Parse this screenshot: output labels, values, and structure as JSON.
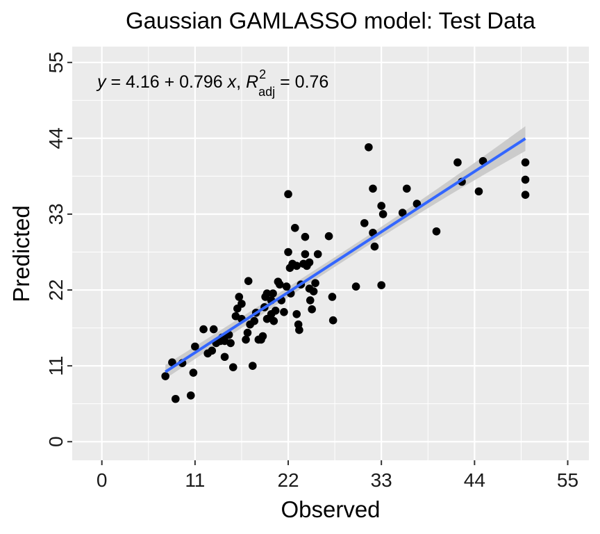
{
  "chart_data": {
    "type": "scatter",
    "title": "Gaussian GAMLASSO model: Test Data",
    "xlabel": "Observed",
    "ylabel": "Predicted",
    "xlim": [
      -3.5,
      57.5
    ],
    "ylim": [
      -2.7,
      57.3
    ],
    "xticks": [
      0,
      11,
      22,
      33,
      44,
      55
    ],
    "yticks": [
      0,
      11,
      22,
      33,
      44,
      55
    ],
    "tick_labels": {
      "x": [
        "0",
        "11",
        "22",
        "33",
        "44",
        "55"
      ],
      "y": [
        "0",
        "11",
        "22",
        "33",
        "44",
        "55"
      ]
    },
    "grid": true,
    "legend": "none",
    "colors": {
      "points": "#000000",
      "fit_line": "#3366ff",
      "ribbon": "#c8c8c8",
      "panel": "#ebebeb",
      "grid": "#ffffff"
    },
    "fit": {
      "intercept": 4.16,
      "slope": 0.796,
      "r2_adj": 0.76,
      "equation_parts": {
        "y": "y",
        "rhs": " = 4.16 + 0.796 ",
        "x": "x",
        "sep": ", ",
        "r": "R",
        "sup": "2",
        "sub": "adj",
        "val": " = 0.76"
      },
      "x_range": [
        7.5,
        50
      ],
      "ci_halfwidth_ends": [
        1.0,
        1.8
      ],
      "ci_halfwidth_center": 0.7
    },
    "points": [
      [
        7.5,
        9.5
      ],
      [
        8.3,
        11.5
      ],
      [
        8.7,
        6.2
      ],
      [
        9.5,
        11.4
      ],
      [
        10.5,
        6.7
      ],
      [
        10.8,
        10.0
      ],
      [
        11.0,
        13.8
      ],
      [
        12.0,
        16.3
      ],
      [
        12.5,
        12.8
      ],
      [
        13.0,
        13.2
      ],
      [
        13.2,
        16.3
      ],
      [
        13.5,
        14.3
      ],
      [
        14.0,
        14.6
      ],
      [
        14.2,
        15.1
      ],
      [
        14.5,
        12.3
      ],
      [
        14.5,
        14.6
      ],
      [
        15.0,
        15.5
      ],
      [
        15.2,
        14.3
      ],
      [
        15.5,
        10.8
      ],
      [
        15.8,
        18.2
      ],
      [
        16.0,
        19.3
      ],
      [
        16.2,
        21.0
      ],
      [
        16.5,
        20.0
      ],
      [
        16.5,
        17.8
      ],
      [
        17.0,
        14.8
      ],
      [
        17.2,
        15.8
      ],
      [
        17.3,
        23.3
      ],
      [
        17.5,
        17.0
      ],
      [
        17.8,
        11.0
      ],
      [
        18.0,
        17.5
      ],
      [
        18.2,
        18.7
      ],
      [
        18.5,
        14.8
      ],
      [
        18.8,
        14.8
      ],
      [
        19.0,
        15.3
      ],
      [
        19.2,
        19.5
      ],
      [
        19.3,
        21.0
      ],
      [
        19.5,
        21.5
      ],
      [
        19.5,
        17.8
      ],
      [
        20.0,
        20.5
      ],
      [
        20.0,
        18.5
      ],
      [
        20.2,
        21.5
      ],
      [
        20.3,
        17.5
      ],
      [
        20.5,
        19.0
      ],
      [
        20.8,
        23.2
      ],
      [
        21.0,
        22.8
      ],
      [
        21.2,
        20.5
      ],
      [
        21.5,
        18.8
      ],
      [
        21.8,
        22.5
      ],
      [
        22.0,
        35.9
      ],
      [
        22.0,
        27.5
      ],
      [
        22.2,
        25.2
      ],
      [
        22.3,
        21.5
      ],
      [
        22.5,
        25.8
      ],
      [
        22.8,
        31.0
      ],
      [
        23.0,
        25.5
      ],
      [
        23.0,
        18.5
      ],
      [
        23.2,
        17.0
      ],
      [
        23.3,
        16.2
      ],
      [
        23.5,
        22.8
      ],
      [
        23.8,
        25.8
      ],
      [
        24.0,
        29.7
      ],
      [
        24.0,
        27.2
      ],
      [
        24.2,
        25.5
      ],
      [
        24.5,
        26.0
      ],
      [
        24.5,
        22.2
      ],
      [
        24.6,
        20.5
      ],
      [
        24.8,
        19.2
      ],
      [
        25.0,
        21.8
      ],
      [
        25.2,
        23.0
      ],
      [
        25.5,
        27.2
      ],
      [
        26.8,
        29.8
      ],
      [
        27.2,
        21.0
      ],
      [
        27.3,
        17.6
      ],
      [
        30.0,
        22.5
      ],
      [
        31.0,
        31.7
      ],
      [
        31.5,
        42.7
      ],
      [
        32.0,
        36.7
      ],
      [
        32.0,
        30.3
      ],
      [
        32.2,
        28.3
      ],
      [
        33.0,
        34.2
      ],
      [
        33.0,
        22.7
      ],
      [
        33.2,
        33.0
      ],
      [
        35.5,
        33.2
      ],
      [
        36.0,
        36.7
      ],
      [
        37.2,
        34.5
      ],
      [
        39.5,
        30.5
      ],
      [
        42.0,
        40.5
      ],
      [
        42.5,
        37.7
      ],
      [
        44.5,
        36.3
      ],
      [
        45.0,
        40.7
      ],
      [
        50.0,
        40.5
      ],
      [
        50.0,
        38.0
      ],
      [
        50.0,
        35.8
      ]
    ]
  }
}
